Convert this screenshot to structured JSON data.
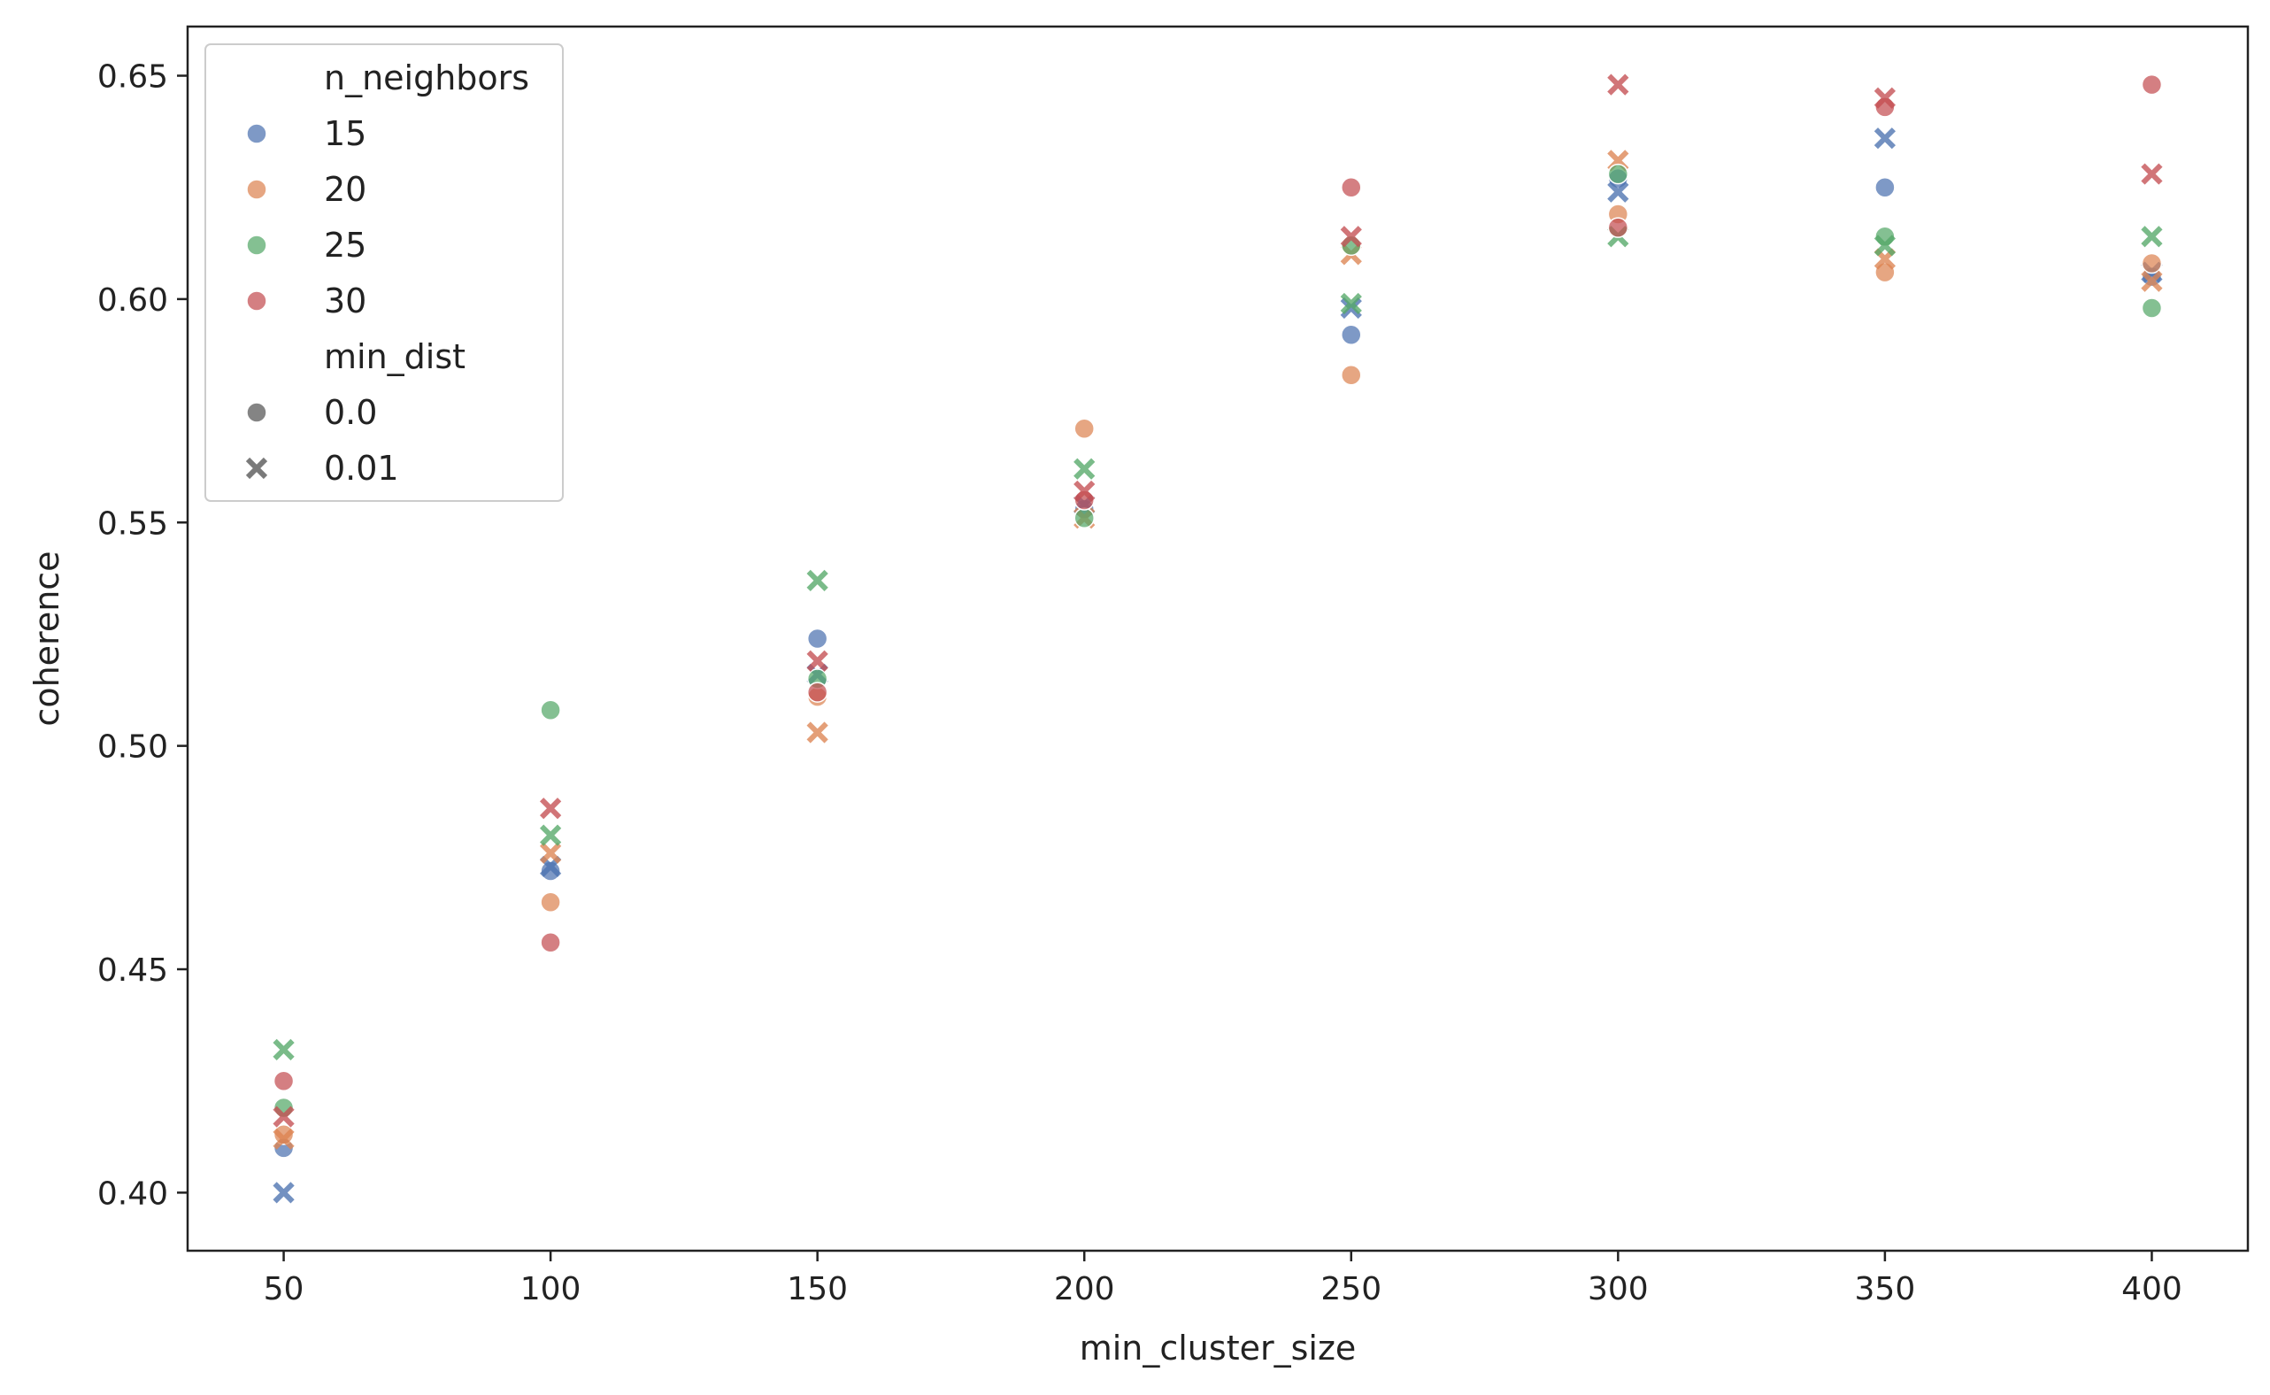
{
  "chart_data": {
    "type": "scatter",
    "title": "",
    "xlabel": "min_cluster_size",
    "ylabel": "coherence",
    "xlim": [
      32,
      418
    ],
    "ylim": [
      0.387,
      0.661
    ],
    "xticks": [
      50,
      100,
      150,
      200,
      250,
      300,
      350,
      400
    ],
    "yticks": [
      0.4,
      0.45,
      0.5,
      0.55,
      0.6,
      0.65
    ],
    "xtick_labels": [
      "50",
      "100",
      "150",
      "200",
      "250",
      "300",
      "350",
      "400"
    ],
    "ytick_labels": [
      "0.40",
      "0.45",
      "0.50",
      "0.55",
      "0.60",
      "0.65"
    ],
    "grid": false,
    "legend": {
      "placement": "top-left",
      "hue_title": "n_neighbors",
      "style_title": "min_dist",
      "hue_entries": [
        {
          "label": "15",
          "color": "#4c72b0"
        },
        {
          "label": "20",
          "color": "#dd8452"
        },
        {
          "label": "25",
          "color": "#55a868"
        },
        {
          "label": "30",
          "color": "#c44e52"
        }
      ],
      "style_entries": [
        {
          "label": "0.0",
          "marker": "circle"
        },
        {
          "label": "0.01",
          "marker": "x"
        }
      ]
    },
    "series": [
      {
        "n_neighbors": 15,
        "min_dist": 0.0,
        "color": "#4c72b0",
        "marker": "circle",
        "x": [
          50,
          100,
          150,
          200,
          250,
          300,
          350,
          400
        ],
        "y": [
          0.41,
          0.472,
          0.524,
          0.553,
          0.592,
          0.627,
          0.625,
          0.605
        ]
      },
      {
        "n_neighbors": 15,
        "min_dist": 0.01,
        "color": "#4c72b0",
        "marker": "x",
        "x": [
          50,
          100,
          150,
          200,
          250,
          300,
          350,
          400
        ],
        "y": [
          0.4,
          0.473,
          0.516,
          0.554,
          0.598,
          0.624,
          0.636,
          0.606
        ]
      },
      {
        "n_neighbors": 20,
        "min_dist": 0.0,
        "color": "#dd8452",
        "marker": "circle",
        "x": [
          50,
          100,
          150,
          200,
          250,
          300,
          350,
          400
        ],
        "y": [
          0.413,
          0.465,
          0.511,
          0.571,
          0.583,
          0.619,
          0.606,
          0.608
        ]
      },
      {
        "n_neighbors": 20,
        "min_dist": 0.01,
        "color": "#dd8452",
        "marker": "x",
        "x": [
          50,
          100,
          150,
          200,
          250,
          300,
          350,
          400
        ],
        "y": [
          0.412,
          0.476,
          0.503,
          0.551,
          0.61,
          0.631,
          0.609,
          0.604
        ]
      },
      {
        "n_neighbors": 25,
        "min_dist": 0.0,
        "color": "#55a868",
        "marker": "circle",
        "x": [
          50,
          100,
          150,
          200,
          250,
          300,
          350,
          400
        ],
        "y": [
          0.419,
          0.508,
          0.515,
          0.551,
          0.612,
          0.628,
          0.614,
          0.598
        ]
      },
      {
        "n_neighbors": 25,
        "min_dist": 0.01,
        "color": "#55a868",
        "marker": "x",
        "x": [
          50,
          100,
          150,
          200,
          250,
          300,
          350,
          400
        ],
        "y": [
          0.432,
          0.48,
          0.537,
          0.562,
          0.599,
          0.614,
          0.612,
          0.614
        ]
      },
      {
        "n_neighbors": 30,
        "min_dist": 0.0,
        "color": "#c44e52",
        "marker": "circle",
        "x": [
          50,
          100,
          150,
          200,
          250,
          300,
          350,
          400
        ],
        "y": [
          0.425,
          0.456,
          0.512,
          0.555,
          0.625,
          0.616,
          0.643,
          0.648
        ]
      },
      {
        "n_neighbors": 30,
        "min_dist": 0.01,
        "color": "#c44e52",
        "marker": "x",
        "x": [
          50,
          100,
          150,
          200,
          250,
          300,
          350,
          400
        ],
        "y": [
          0.417,
          0.486,
          0.519,
          0.557,
          0.614,
          0.648,
          0.645,
          0.628
        ]
      }
    ]
  }
}
